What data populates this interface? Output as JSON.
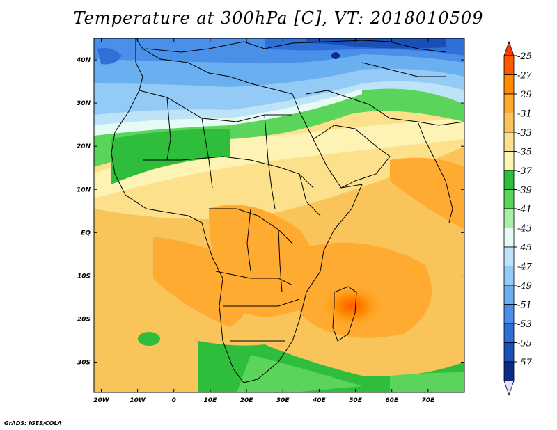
{
  "title": "Temperature at 300hPa [C], VT: 2018010509",
  "footer": "GrADS: IGES/COLA",
  "map": {
    "lon_range": [
      -22,
      80
    ],
    "lat_range": [
      -37,
      45
    ],
    "lon_ticks": [
      "20W",
      "10W",
      "0",
      "10E",
      "20E",
      "30E",
      "40E",
      "50E",
      "60E",
      "70E"
    ],
    "lat_ticks": [
      "40N",
      "30N",
      "20N",
      "10N",
      "EQ",
      "10S",
      "20S",
      "30S"
    ]
  },
  "colorbar": {
    "levels": [
      "-25",
      "-27",
      "-29",
      "-31",
      "-33",
      "-35",
      "-37",
      "-39",
      "-41",
      "-43",
      "-45",
      "-47",
      "-49",
      "-51",
      "-53",
      "-55",
      "-57"
    ],
    "colors": [
      "#ff5a00",
      "#ff8c00",
      "#ffaa30",
      "#f9c45a",
      "#fde08c",
      "#fdf3b4",
      "#2fbd3c",
      "#5ad45a",
      "#a9efa4",
      "#e6fbf4",
      "#bde3f8",
      "#93cbf6",
      "#6aaff0",
      "#4a90e8",
      "#2f6fd8",
      "#1b4fb8",
      "#0c2a8a"
    ],
    "top_color": "#ff3a00",
    "bottom_color": "#e8e0ff"
  }
}
